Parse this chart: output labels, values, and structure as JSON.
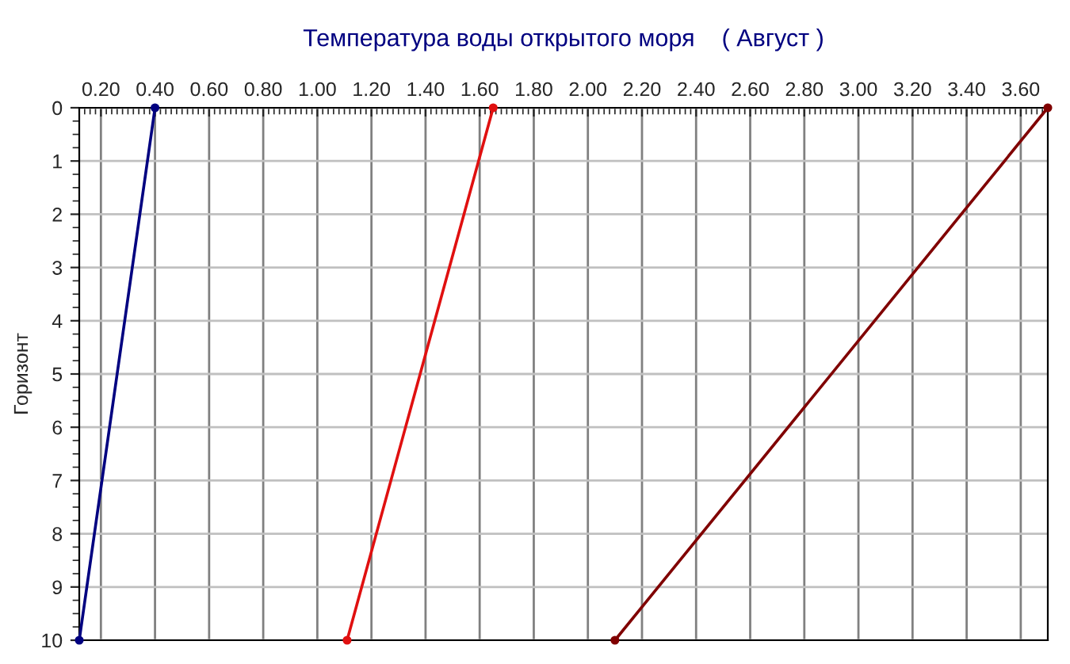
{
  "chart_data": {
    "type": "line",
    "title": "Температура воды открытого моря    ( Август )",
    "ylabel": "Горизонт",
    "series": [
      {
        "color": "#000080",
        "x": [
          0.4,
          0.12
        ],
        "values": [
          0,
          10
        ]
      },
      {
        "color": "#e01010",
        "x": [
          1.65,
          1.11
        ],
        "values": [
          0,
          10
        ]
      },
      {
        "color": "#800000",
        "x": [
          3.7,
          2.1
        ],
        "values": [
          0,
          10
        ]
      }
    ],
    "xlim": [
      0.12,
      3.7
    ],
    "xticks": [
      {
        "value": 0.2,
        "label": "0.20"
      },
      {
        "value": 0.4,
        "label": "0.40"
      },
      {
        "value": 0.6,
        "label": "0.60"
      },
      {
        "value": 0.8,
        "label": "0.80"
      },
      {
        "value": 1.0,
        "label": "1.00"
      },
      {
        "value": 1.2,
        "label": "1.20"
      },
      {
        "value": 1.4,
        "label": "1.40"
      },
      {
        "value": 1.6,
        "label": "1.60"
      },
      {
        "value": 1.8,
        "label": "1.80"
      },
      {
        "value": 2.0,
        "label": "2.00"
      },
      {
        "value": 2.2,
        "label": "2.20"
      },
      {
        "value": 2.4,
        "label": "2.40"
      },
      {
        "value": 2.6,
        "label": "2.60"
      },
      {
        "value": 2.8,
        "label": "2.80"
      },
      {
        "value": 3.0,
        "label": "3.00"
      },
      {
        "value": 3.2,
        "label": "3.20"
      },
      {
        "value": 3.4,
        "label": "3.40"
      },
      {
        "value": 3.6,
        "label": "3.60"
      }
    ],
    "ylim": [
      10,
      0
    ],
    "yticks": [
      0,
      1,
      2,
      3,
      4,
      5,
      6,
      7,
      8,
      9,
      10
    ],
    "grid": true,
    "marker": "circle",
    "line_style": "solid"
  }
}
